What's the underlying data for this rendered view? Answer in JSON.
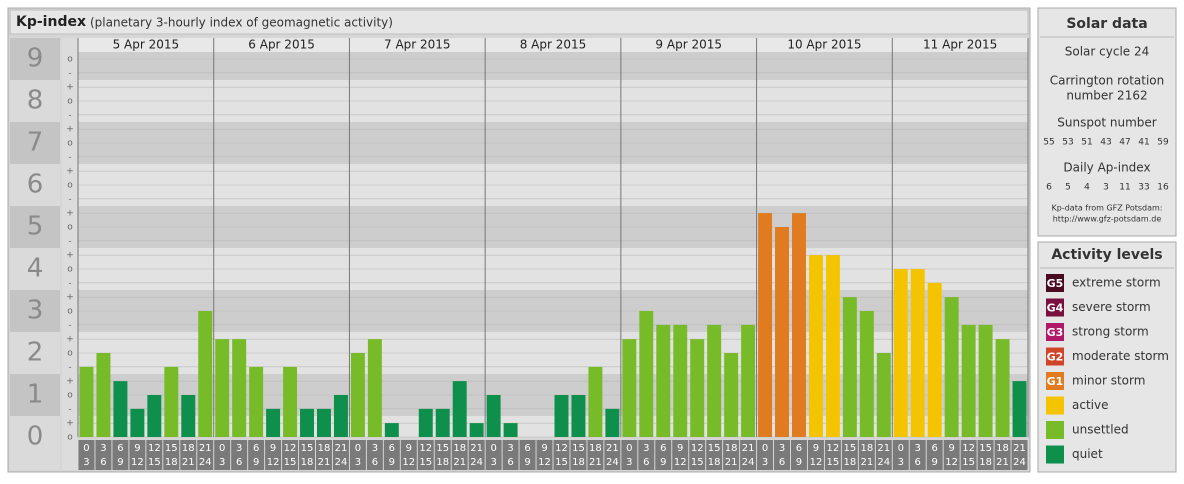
{
  "chart_data": {
    "type": "bar",
    "title": "Kp-index",
    "subtitle": "(planetary 3-hourly index of geomagnetic activity)",
    "ylim": [
      0,
      9.5
    ],
    "yticks": [
      0,
      1,
      2,
      3,
      4,
      5,
      6,
      7,
      8,
      9
    ],
    "minor_ticks": [
      {
        "value": 9,
        "label": "o"
      },
      {
        "value": 8.67,
        "label": "-"
      },
      {
        "value": 8.33,
        "label": "+"
      },
      {
        "value": 8,
        "label": "o"
      },
      {
        "value": 7.67,
        "label": "-"
      },
      {
        "value": 7.33,
        "label": "+"
      },
      {
        "value": 7,
        "label": "o"
      },
      {
        "value": 6.67,
        "label": "-"
      },
      {
        "value": 6.33,
        "label": "+"
      },
      {
        "value": 6,
        "label": "o"
      },
      {
        "value": 5.67,
        "label": "-"
      },
      {
        "value": 5.33,
        "label": "+"
      },
      {
        "value": 5,
        "label": "o"
      },
      {
        "value": 4.67,
        "label": "-"
      },
      {
        "value": 4.33,
        "label": "+"
      },
      {
        "value": 4,
        "label": "o"
      },
      {
        "value": 3.67,
        "label": "-"
      },
      {
        "value": 3.33,
        "label": "+"
      },
      {
        "value": 3,
        "label": "o"
      },
      {
        "value": 2.67,
        "label": "-"
      },
      {
        "value": 2.33,
        "label": "+"
      },
      {
        "value": 2,
        "label": "o"
      },
      {
        "value": 1.67,
        "label": "-"
      },
      {
        "value": 1.33,
        "label": "+"
      },
      {
        "value": 1,
        "label": "o"
      },
      {
        "value": 0.67,
        "label": "-"
      },
      {
        "value": 0.33,
        "label": "+"
      },
      {
        "value": 0,
        "label": "o"
      }
    ],
    "hour_labels": [
      [
        "0",
        "3"
      ],
      [
        "3",
        "6"
      ],
      [
        "6",
        "9"
      ],
      [
        "9",
        "12"
      ],
      [
        "12",
        "15"
      ],
      [
        "15",
        "18"
      ],
      [
        "18",
        "21"
      ],
      [
        "21",
        "24"
      ]
    ],
    "days": [
      {
        "label": "5 Apr 2015",
        "values": [
          1.67,
          2,
          1.33,
          0.67,
          1,
          1.67,
          1,
          3
        ],
        "colors": [
          "#78bb28",
          "#78bb28",
          "#0f8f4c",
          "#0f8f4c",
          "#0f8f4c",
          "#78bb28",
          "#0f8f4c",
          "#78bb28"
        ]
      },
      {
        "label": "6 Apr 2015",
        "values": [
          2.33,
          2.33,
          1.67,
          0.67,
          1.67,
          0.67,
          0.67,
          1
        ],
        "colors": [
          "#78bb28",
          "#78bb28",
          "#78bb28",
          "#0f8f4c",
          "#78bb28",
          "#0f8f4c",
          "#0f8f4c",
          "#0f8f4c"
        ]
      },
      {
        "label": "7 Apr 2015",
        "values": [
          2,
          2.33,
          0.33,
          0,
          0.67,
          0.67,
          1.33,
          0.33
        ],
        "colors": [
          "#78bb28",
          "#78bb28",
          "#0f8f4c",
          "#0f8f4c",
          "#0f8f4c",
          "#0f8f4c",
          "#0f8f4c",
          "#0f8f4c"
        ]
      },
      {
        "label": "8 Apr 2015",
        "values": [
          1,
          0.33,
          0,
          0,
          1,
          1,
          1.67,
          0.67
        ],
        "colors": [
          "#0f8f4c",
          "#0f8f4c",
          "#0f8f4c",
          "#0f8f4c",
          "#0f8f4c",
          "#0f8f4c",
          "#78bb28",
          "#0f8f4c"
        ]
      },
      {
        "label": "9 Apr 2015",
        "values": [
          2.33,
          3,
          2.67,
          2.67,
          2.33,
          2.67,
          2,
          2.67
        ],
        "colors": [
          "#78bb28",
          "#78bb28",
          "#78bb28",
          "#78bb28",
          "#78bb28",
          "#78bb28",
          "#78bb28",
          "#78bb28"
        ]
      },
      {
        "label": "10 Apr 2015",
        "values": [
          5.33,
          5,
          5.33,
          4.33,
          4.33,
          3.33,
          3,
          2
        ],
        "colors": [
          "#e07b20",
          "#e07b20",
          "#e07b20",
          "#f5c400",
          "#f5c400",
          "#78bb28",
          "#78bb28",
          "#78bb28"
        ]
      },
      {
        "label": "11 Apr 2015",
        "values": [
          4,
          4,
          3.67,
          3.33,
          2.67,
          2.67,
          2.33,
          1.33
        ],
        "colors": [
          "#f5c400",
          "#f5c400",
          "#f5c400",
          "#78bb28",
          "#78bb28",
          "#78bb28",
          "#78bb28",
          "#0f8f4c"
        ]
      }
    ]
  },
  "solar_data": {
    "title": "Solar data",
    "cycle": "Solar cycle 24",
    "carrington": [
      "Carrington rotation",
      "number 2162"
    ],
    "sunspot_title": "Sunspot number",
    "sunspot_numbers": [
      "55",
      "53",
      "51",
      "43",
      "47",
      "41",
      "59"
    ],
    "ap_title": "Daily Ap-index",
    "ap_values": [
      "6",
      "5",
      "4",
      "3",
      "11",
      "33",
      "16"
    ],
    "source": [
      "Kp-data from GFZ Potsdam:",
      "http://www.gfz-potsdam.de"
    ]
  },
  "activity_levels": {
    "title": "Activity levels",
    "items": [
      {
        "badge": "G5",
        "label": "extreme storm",
        "color": "#4a0a22"
      },
      {
        "badge": "G4",
        "label": "severe storm",
        "color": "#7a1040"
      },
      {
        "badge": "G3",
        "label": "strong storm",
        "color": "#b0186a"
      },
      {
        "badge": "G2",
        "label": "moderate storm",
        "color": "#d0452a"
      },
      {
        "badge": "G1",
        "label": "minor storm",
        "color": "#e07b20"
      },
      {
        "label": "active",
        "color": "#f5c400"
      },
      {
        "label": "unsettled",
        "color": "#78bb28"
      },
      {
        "label": "quiet",
        "color": "#0f8f4c"
      }
    ]
  }
}
